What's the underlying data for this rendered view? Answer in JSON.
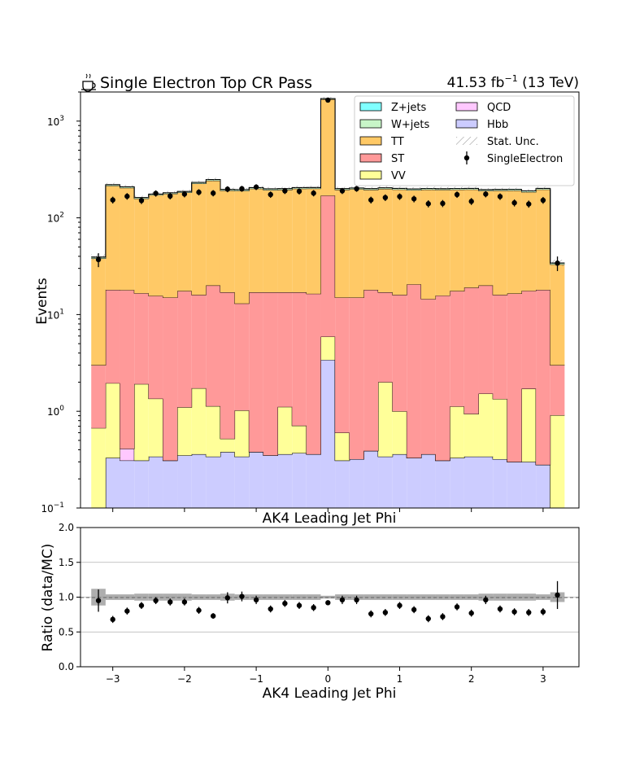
{
  "header": {
    "title_icon": "coffee-cup-icon",
    "title": "Single Electron Top CR Pass",
    "lumi_value": "41.53 fb",
    "lumi_exp": "−1",
    "lumi_energy": " (13 TeV)"
  },
  "legend": {
    "entries": [
      {
        "label": "Z+jets",
        "color": "#80ffff",
        "kind": "box"
      },
      {
        "label": "W+jets",
        "color": "#c8f5c8",
        "kind": "box"
      },
      {
        "label": "TT",
        "color": "#ffc966",
        "kind": "box"
      },
      {
        "label": "ST",
        "color": "#ff9999",
        "kind": "box"
      },
      {
        "label": "VV",
        "color": "#ffff99",
        "kind": "box"
      },
      {
        "label": "QCD",
        "color": "#ffc8ff",
        "kind": "box"
      },
      {
        "label": "Hbb",
        "color": "#ccccff",
        "kind": "box"
      },
      {
        "label": "Stat. Unc.",
        "color": "#888888",
        "kind": "hatch"
      },
      {
        "label": "SingleElectron",
        "color": "#000000",
        "kind": "errorbar"
      }
    ]
  },
  "chart_data": [
    {
      "type": "area",
      "subtype": "stacked-histogram",
      "ylabel": "Events",
      "xlabel": "AK4 Leading Jet Phi",
      "yscale": "log",
      "ylim": [
        0.1,
        2000
      ],
      "xlim": [
        -3.45,
        3.5
      ],
      "y_ticks": [
        {
          "value": 0.1,
          "mant": "10",
          "exp": "−1"
        },
        {
          "value": 1,
          "mant": "10",
          "exp": "0"
        },
        {
          "value": 10,
          "mant": "10",
          "exp": "1"
        },
        {
          "value": 100,
          "mant": "10",
          "exp": "2"
        },
        {
          "value": 1000,
          "mant": "10",
          "exp": "3"
        }
      ],
      "bin_edges": [
        -3.3,
        -3.1,
        -2.9,
        -2.7,
        -2.5,
        -2.3,
        -2.1,
        -1.9,
        -1.7,
        -1.5,
        -1.3,
        -1.1,
        -0.9,
        -0.7,
        -0.5,
        -0.3,
        -0.1,
        0.1,
        0.3,
        0.5,
        0.7,
        0.9,
        1.1,
        1.3,
        1.5,
        1.7,
        1.9,
        2.1,
        2.3,
        2.5,
        2.7,
        2.9,
        3.1,
        3.3
      ],
      "stack_order_bottom_to_top": [
        "Hbb",
        "QCD",
        "VV",
        "ST",
        "TT",
        "W+jets",
        "Z+jets"
      ],
      "series": [
        {
          "name": "Hbb",
          "color": "#ccccff",
          "values": [
            0.0,
            0.33,
            0.31,
            0.31,
            0.34,
            0.31,
            0.35,
            0.36,
            0.34,
            0.38,
            0.34,
            0.38,
            0.35,
            0.36,
            0.37,
            0.36,
            3.4,
            0.31,
            0.32,
            0.39,
            0.34,
            0.36,
            0.33,
            0.36,
            0.31,
            0.33,
            0.34,
            0.34,
            0.32,
            0.3,
            0.3,
            0.28,
            0.0
          ]
        },
        {
          "name": "QCD",
          "color": "#ffc8ff",
          "values": [
            0.0,
            0.0,
            0.1,
            0.0,
            0.0,
            0.0,
            0.0,
            0.0,
            0.0,
            0.0,
            0.0,
            0.0,
            0.0,
            0.0,
            0.0,
            0.0,
            0.0,
            0.0,
            0.0,
            0.0,
            0.0,
            0.0,
            0.0,
            0.0,
            0.0,
            0.0,
            0.0,
            0.0,
            0.0,
            0.0,
            0.0,
            0.0,
            0.0
          ]
        },
        {
          "name": "VV",
          "color": "#ffff99",
          "values": [
            0.67,
            1.62,
            0.0,
            1.6,
            1.01,
            0.0,
            0.75,
            1.37,
            0.79,
            0.14,
            0.68,
            0.0,
            0.0,
            0.75,
            0.34,
            0.0,
            2.5,
            0.29,
            0.0,
            0.0,
            1.66,
            0.64,
            0.0,
            0.0,
            0.0,
            0.79,
            0.6,
            1.18,
            1.02,
            0.0,
            1.41,
            0.0,
            0.91
          ]
        },
        {
          "name": "ST",
          "color": "#ff9999",
          "values": [
            2.33,
            16.05,
            17.49,
            14.7,
            14.25,
            14.69,
            16.4,
            14.27,
            18.87,
            16.48,
            12.0,
            16.62,
            16.65,
            15.89,
            16.29,
            16.04,
            164.1,
            14.4,
            14.68,
            17.61,
            15.0,
            15.0,
            20.17,
            14.14,
            15.39,
            16.38,
            18.06,
            18.48,
            14.66,
            16.2,
            15.89,
            17.72,
            2.09
          ]
        },
        {
          "name": "TT",
          "color": "#ffc966",
          "values": [
            35.0,
            196.0,
            186.0,
            141.0,
            156.0,
            162.0,
            165.0,
            210.0,
            222.0,
            174.0,
            177.0,
            183.0,
            177.0,
            178.0,
            183.0,
            184.0,
            1510.0,
            180.0,
            183.0,
            177.0,
            182.0,
            180.0,
            173.0,
            181.0,
            179.0,
            178.0,
            177.0,
            170.0,
            175.0,
            175.0,
            167.0,
            178.0,
            30.0
          ]
        },
        {
          "name": "W+jets",
          "color": "#c8f5c8",
          "values": [
            1.2,
            6.0,
            5.0,
            4.0,
            4.0,
            4.0,
            4.5,
            6.0,
            6.0,
            5.0,
            5.0,
            5.0,
            5.0,
            5.0,
            5.0,
            5.0,
            25.0,
            5.0,
            5.0,
            5.0,
            5.0,
            5.0,
            5.0,
            5.0,
            5.0,
            5.0,
            5.0,
            5.0,
            5.0,
            5.0,
            5.0,
            5.0,
            1.0
          ]
        },
        {
          "name": "Z+jets",
          "color": "#80ffff",
          "values": [
            0.2,
            1.0,
            1.0,
            0.8,
            0.8,
            0.8,
            0.9,
            1.0,
            1.0,
            0.9,
            0.9,
            0.9,
            0.9,
            0.9,
            0.9,
            0.9,
            4.0,
            0.9,
            0.9,
            0.9,
            0.9,
            0.9,
            0.9,
            0.9,
            0.9,
            0.9,
            0.9,
            0.9,
            0.9,
            0.9,
            0.9,
            0.9,
            0.2
          ]
        }
      ],
      "data_series": {
        "name": "SingleElectron",
        "color": "#000000",
        "x": [
          -3.2,
          -3.0,
          -2.8,
          -2.6,
          -2.4,
          -2.2,
          -2.0,
          -1.8,
          -1.6,
          -1.4,
          -1.2,
          -1.0,
          -0.8,
          -0.6,
          -0.4,
          -0.2,
          0.0,
          0.2,
          0.4,
          0.6,
          0.8,
          1.0,
          1.2,
          1.4,
          1.6,
          1.8,
          2.0,
          2.2,
          2.4,
          2.6,
          2.8,
          3.0,
          3.2
        ],
        "values": [
          37,
          153,
          167,
          151,
          179,
          168,
          176,
          184,
          180,
          198,
          200,
          208,
          174,
          190,
          188,
          180,
          1650,
          190,
          200,
          153,
          162,
          166,
          157,
          140,
          141,
          174,
          148,
          176,
          166,
          143,
          139,
          152,
          34
        ]
      }
    },
    {
      "type": "scatter",
      "subtype": "ratio-panel",
      "xlabel": "AK4 Leading Jet Phi",
      "ylabel": "Ratio (data/MC)",
      "ylim": [
        0.0,
        2.0
      ],
      "xlim": [
        -3.45,
        3.5
      ],
      "y_ticks": [
        "0.0",
        "0.5",
        "1.0",
        "1.5",
        "2.0"
      ],
      "x_ticks": [
        "−3",
        "−2",
        "−1",
        "0",
        "1",
        "2",
        "3"
      ],
      "grid_y": [
        0.5,
        1.0,
        1.5
      ],
      "x": [
        -3.2,
        -3.0,
        -2.8,
        -2.6,
        -2.4,
        -2.2,
        -2.0,
        -1.8,
        -1.6,
        -1.4,
        -1.2,
        -1.0,
        -0.8,
        -0.6,
        -0.4,
        -0.2,
        0.0,
        0.2,
        0.4,
        0.6,
        0.8,
        1.0,
        1.2,
        1.4,
        1.6,
        1.8,
        2.0,
        2.2,
        2.4,
        2.6,
        2.8,
        3.0,
        3.2
      ],
      "values": [
        0.95,
        0.68,
        0.8,
        0.88,
        0.95,
        0.93,
        0.93,
        0.81,
        0.73,
        0.99,
        1.01,
        0.96,
        0.83,
        0.91,
        0.88,
        0.85,
        0.92,
        0.96,
        0.96,
        0.76,
        0.78,
        0.88,
        0.82,
        0.69,
        0.72,
        0.86,
        0.77,
        0.96,
        0.83,
        0.79,
        0.78,
        0.79,
        1.03
      ],
      "errors": [
        0.16,
        0.05,
        0.05,
        0.05,
        0.05,
        0.05,
        0.05,
        0.05,
        0.04,
        0.08,
        0.07,
        0.06,
        0.05,
        0.05,
        0.05,
        0.05,
        0.02,
        0.06,
        0.06,
        0.05,
        0.05,
        0.05,
        0.05,
        0.05,
        0.05,
        0.05,
        0.05,
        0.06,
        0.05,
        0.05,
        0.05,
        0.05,
        0.2
      ],
      "mc_unc": [
        0.12,
        0.04,
        0.04,
        0.05,
        0.05,
        0.05,
        0.05,
        0.04,
        0.04,
        0.05,
        0.04,
        0.04,
        0.04,
        0.04,
        0.04,
        0.04,
        0.02,
        0.04,
        0.04,
        0.04,
        0.04,
        0.04,
        0.04,
        0.04,
        0.04,
        0.04,
        0.04,
        0.05,
        0.05,
        0.05,
        0.05,
        0.04,
        0.07
      ]
    }
  ]
}
